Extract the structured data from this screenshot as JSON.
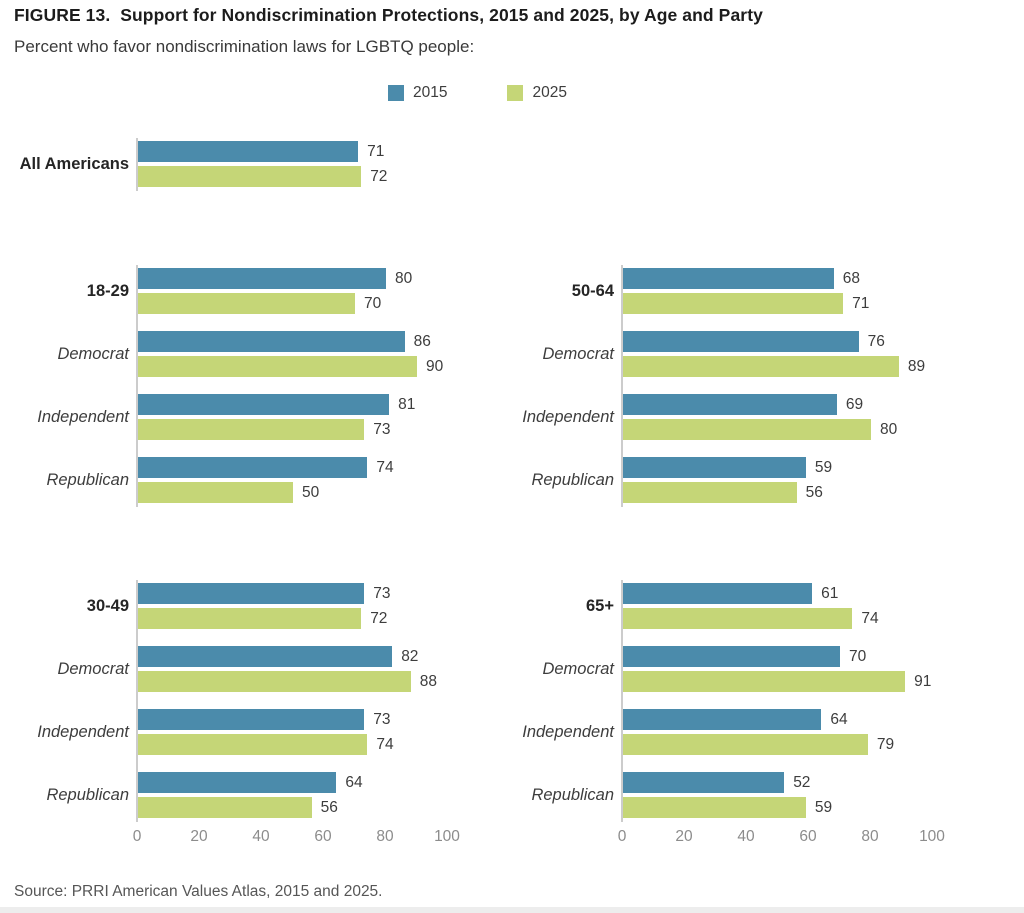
{
  "header": {
    "title": "FIGURE 13.  Support for Nondiscrimination Protections, 2015 and 2025, by Age and Party",
    "subtitle": "Percent who favor nondiscrimination laws for LGBTQ people:"
  },
  "chart_data": {
    "type": "bar",
    "orientation": "horizontal",
    "title": "FIGURE 13.  Support for Nondiscrimination Protections, 2015 and 2025, by Age and Party",
    "subtitle": "Percent who favor nondiscrimination laws for LGBTQ people:",
    "xlim": [
      0,
      100
    ],
    "x_ticks": [
      0,
      20,
      40,
      60,
      80,
      100
    ],
    "grid": false,
    "legend_position": "top-center",
    "series_names": [
      "2015",
      "2025"
    ],
    "legend": [
      {
        "label": "2015",
        "color": "#4b8bab"
      },
      {
        "label": "2025",
        "color": "#c5d677"
      }
    ],
    "panels": [
      {
        "id": "all-americans",
        "show_axis_labels": false,
        "rows": [
          {
            "label": "All Americans",
            "emphasis": "bold",
            "values": [
              71,
              72
            ]
          }
        ]
      },
      {
        "id": "18-29",
        "show_axis_labels": false,
        "rows": [
          {
            "label": "18-29",
            "emphasis": "bold",
            "values": [
              80,
              70
            ]
          },
          {
            "label": "Democrat",
            "emphasis": "italic",
            "values": [
              86,
              90
            ]
          },
          {
            "label": "Independent",
            "emphasis": "italic",
            "values": [
              81,
              73
            ]
          },
          {
            "label": "Republican",
            "emphasis": "italic",
            "values": [
              74,
              50
            ]
          }
        ]
      },
      {
        "id": "50-64",
        "show_axis_labels": false,
        "rows": [
          {
            "label": "50-64",
            "emphasis": "bold",
            "values": [
              68,
              71
            ]
          },
          {
            "label": "Democrat",
            "emphasis": "italic",
            "values": [
              76,
              89
            ]
          },
          {
            "label": "Independent",
            "emphasis": "italic",
            "values": [
              69,
              80
            ]
          },
          {
            "label": "Republican",
            "emphasis": "italic",
            "values": [
              59,
              56
            ]
          }
        ]
      },
      {
        "id": "30-49",
        "show_axis_labels": true,
        "rows": [
          {
            "label": "30-49",
            "emphasis": "bold",
            "values": [
              73,
              72
            ]
          },
          {
            "label": "Democrat",
            "emphasis": "italic",
            "values": [
              82,
              88
            ]
          },
          {
            "label": "Independent",
            "emphasis": "italic",
            "values": [
              73,
              74
            ]
          },
          {
            "label": "Republican",
            "emphasis": "italic",
            "values": [
              64,
              56
            ]
          }
        ]
      },
      {
        "id": "65plus",
        "show_axis_labels": true,
        "rows": [
          {
            "label": "65+",
            "emphasis": "bold",
            "values": [
              61,
              74
            ]
          },
          {
            "label": "Democrat",
            "emphasis": "italic",
            "values": [
              70,
              91
            ]
          },
          {
            "label": "Independent",
            "emphasis": "italic",
            "values": [
              64,
              79
            ]
          },
          {
            "label": "Republican",
            "emphasis": "italic",
            "values": [
              52,
              59
            ]
          }
        ]
      }
    ]
  },
  "colors": {
    "series_2015": "#4b8bab",
    "series_2025": "#c5d677",
    "axis_line": "#cccccc"
  },
  "footer": {
    "source": "Source: PRRI American Values Atlas, 2015 and 2025."
  }
}
